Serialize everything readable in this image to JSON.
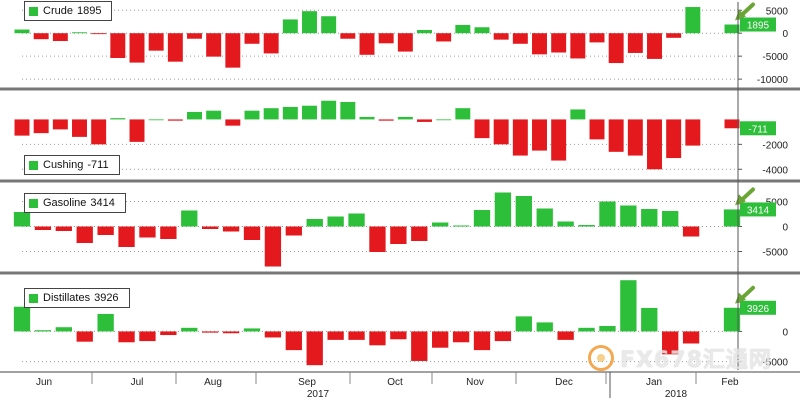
{
  "colors": {
    "positive": "#2dbe3a",
    "negative": "#e3191e",
    "arrow": "#6aa536",
    "value_label_bg": "#2dbe3a",
    "value_label_fg": "#ffffff"
  },
  "chart_data": [
    {
      "type": "bar",
      "legend": "Crude",
      "legend_value": "1895",
      "last_label": "1895",
      "yticks": [
        5000,
        0,
        -5000,
        -10000
      ],
      "ytick_labels": [
        "5000",
        "0",
        "-5000",
        "-10000"
      ],
      "ylim": [
        -11500,
        6800
      ],
      "values": [
        800,
        -1300,
        -1700,
        200,
        -200,
        -5400,
        -6400,
        -3800,
        -6200,
        -1200,
        -5100,
        -7500,
        -2300,
        -4400,
        3000,
        4800,
        3700,
        -1200,
        -4700,
        -2200,
        -4000,
        700,
        -1800,
        1800,
        1300,
        -1400,
        -2300,
        -4600,
        -4200,
        -5500,
        -2000,
        -6500,
        -4300,
        -5600,
        -1000,
        5700,
        1895
      ]
    },
    {
      "type": "bar",
      "legend": "Cushing",
      "legend_value": "-711",
      "last_label": "-711",
      "yticks": [
        -2000,
        -4000
      ],
      "ytick_labels": [
        "-2000",
        "-4000"
      ],
      "ylim": [
        -4700,
        2200
      ],
      "values": [
        -1300,
        -1100,
        -800,
        -1400,
        -2000,
        100,
        -1800,
        0,
        -100,
        600,
        700,
        -500,
        700,
        900,
        1000,
        1100,
        1500,
        1400,
        200,
        -100,
        200,
        -200,
        0,
        900,
        -1500,
        -2000,
        -2900,
        -2500,
        -3300,
        800,
        -1600,
        -2600,
        -2900,
        -4000,
        -3100,
        -2100,
        -711
      ]
    },
    {
      "type": "bar",
      "legend": "Gasoline",
      "legend_value": "3414",
      "last_label": "3414",
      "yticks": [
        5000,
        0,
        -5000
      ],
      "ytick_labels": [
        "5000",
        "0",
        "-5000"
      ],
      "ylim": [
        -8700,
        8500
      ],
      "values": [
        2900,
        -700,
        -900,
        -3300,
        -1700,
        -4100,
        -2200,
        -2500,
        3200,
        -500,
        -1000,
        -2700,
        -8000,
        -1800,
        1500,
        2000,
        2600,
        -5100,
        -3500,
        -2900,
        800,
        200,
        3300,
        6800,
        6100,
        3600,
        1000,
        300,
        5000,
        4200,
        3500,
        3100,
        -2000,
        3414
      ]
    },
    {
      "type": "bar",
      "legend": "Distillates",
      "legend_value": "3926",
      "last_label": "3926",
      "yticks": [
        0,
        -5000
      ],
      "ytick_labels": [
        "0",
        "-5000"
      ],
      "ylim": [
        -6400,
        9200
      ],
      "values": [
        4100,
        200,
        700,
        -1700,
        2900,
        -1800,
        -1600,
        -600,
        600,
        -200,
        -300,
        500,
        -1000,
        -3100,
        -5600,
        -1400,
        -1400,
        -2300,
        -1300,
        -4900,
        -2700,
        -1800,
        -3100,
        -1600,
        2500,
        1500,
        -1400,
        600,
        900,
        8500,
        3900,
        -3800,
        -2000,
        3926
      ]
    }
  ],
  "x_axis": {
    "month_labels": [
      "Jun",
      "Jul",
      "Aug",
      "Sep",
      "Oct",
      "Nov",
      "Dec",
      "Jan",
      "Feb"
    ],
    "year_labels": [
      "2017",
      "2018"
    ]
  },
  "watermark": {
    "text": "FX678汇通网"
  }
}
